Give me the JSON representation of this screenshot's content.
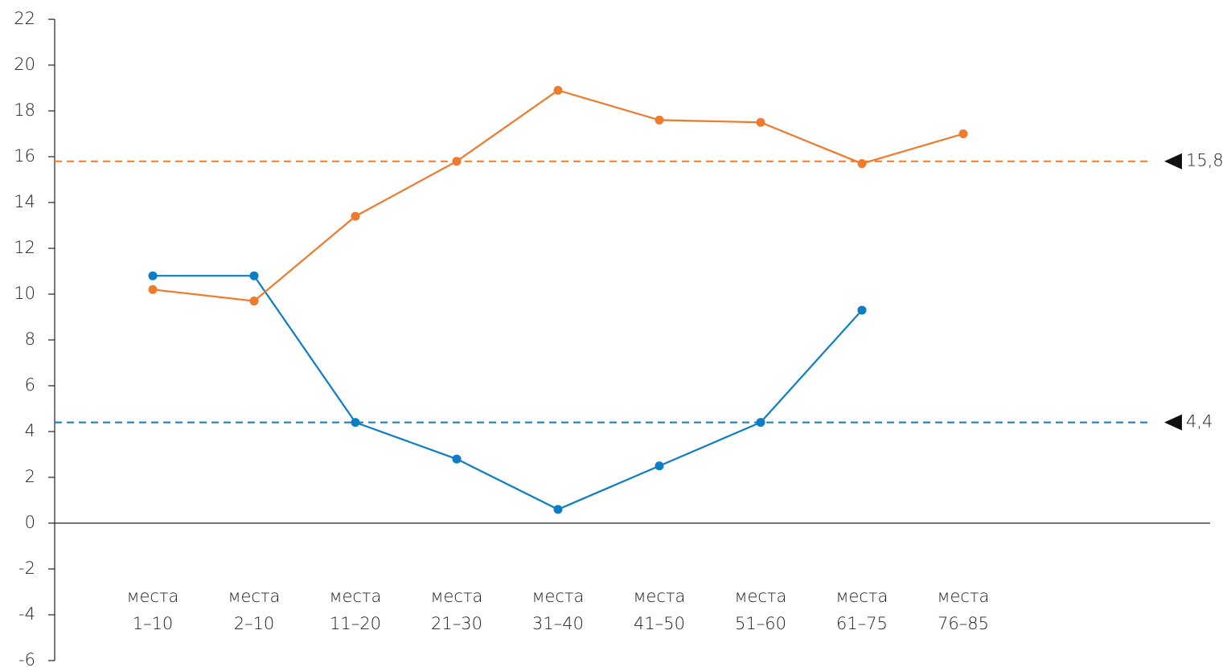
{
  "chart_data": {
    "type": "line",
    "categories": [
      "места 1–10",
      "места 2–10",
      "места 11–20",
      "места 21–30",
      "места 31–40",
      "места 41–50",
      "места 51–60",
      "места 61–75",
      "места 76–85"
    ],
    "series": [
      {
        "color": "#0a7dc6",
        "values": [
          10.8,
          10.8,
          4.4,
          2.8,
          0.6,
          2.5,
          4.4,
          9.3,
          null
        ]
      },
      {
        "color": "#f07a2c",
        "values": [
          10.2,
          9.7,
          13.4,
          15.8,
          18.9,
          17.6,
          17.5,
          15.7,
          17.0
        ]
      }
    ],
    "reference_lines": [
      {
        "value": 15.8,
        "label": "15,8",
        "color": "#f07a2c"
      },
      {
        "value": 4.4,
        "label": "4,4",
        "color": "#0a7dc6"
      }
    ],
    "ylim": [
      -6,
      22
    ],
    "yticks": [
      -6,
      -4,
      -2,
      0,
      2,
      4,
      6,
      8,
      10,
      12,
      14,
      16,
      18,
      20,
      22
    ],
    "grid": false
  }
}
